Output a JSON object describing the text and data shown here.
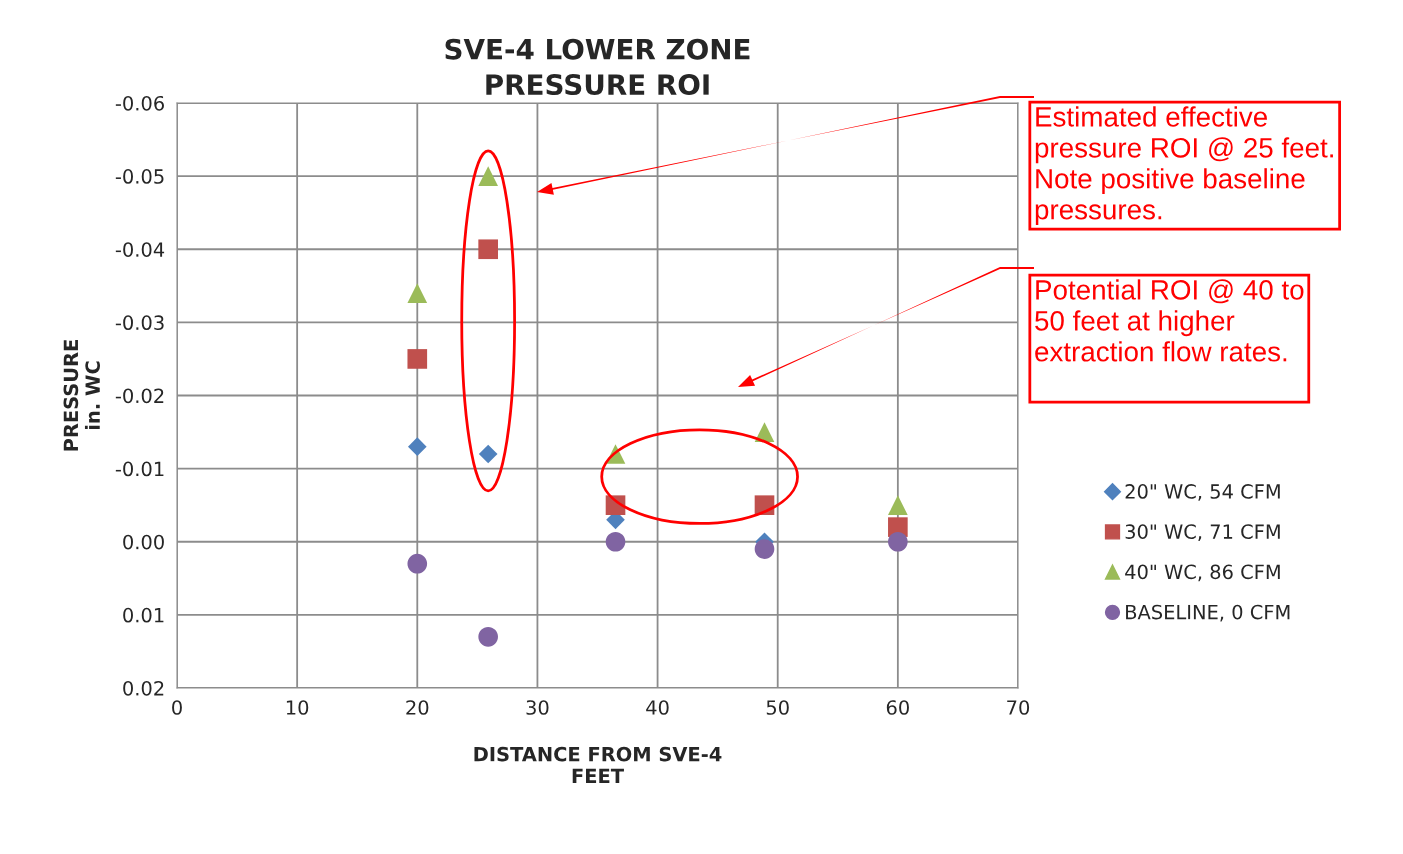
{
  "chart_data": {
    "type": "scatter",
    "title": "SVE-4 LOWER ZONE\nPRESSURE ROI",
    "xlabel": "DISTANCE FROM SVE-4\nFEET",
    "ylabel": "PRESSURE\nin. WC",
    "x": [
      20,
      25.9,
      36.5,
      48.9,
      60
    ],
    "series": [
      {
        "name": "20\" WC, 54 CFM",
        "color": "#4f81bd",
        "marker": "diamond",
        "values": [
          -0.013,
          -0.012,
          -0.003,
          0.0,
          null
        ]
      },
      {
        "name": "30\" WC, 71 CFM",
        "color": "#c0504d",
        "marker": "square",
        "values": [
          -0.025,
          -0.04,
          -0.005,
          -0.005,
          -0.002
        ]
      },
      {
        "name": "40\" WC, 86 CFM",
        "color": "#9bbb59",
        "marker": "triangle",
        "values": [
          -0.034,
          -0.05,
          -0.012,
          -0.015,
          -0.005
        ]
      },
      {
        "name": "BASELINE, 0 CFM",
        "color": "#8064a2",
        "marker": "circle",
        "values": [
          0.003,
          0.013,
          0.0,
          0.001,
          0.0
        ]
      }
    ],
    "xlim": [
      0,
      70
    ],
    "xticks": [
      0,
      10,
      20,
      30,
      40,
      50,
      60,
      70
    ],
    "ylim": [
      0.02,
      -0.06
    ],
    "yticks": [
      -0.06,
      -0.05,
      -0.04,
      -0.03,
      -0.02,
      -0.01,
      {
        "value": 0,
        "label": "0.00"
      },
      0.01,
      0.02
    ],
    "grid": true,
    "legend": "right",
    "annotations": [
      "Estimated effective\npressure ROI @ 25 feet.\nNote positive baseline\npressures.",
      "Potential ROI @ 40 to\n50 feet at higher\nextraction flow rates.\n"
    ]
  }
}
